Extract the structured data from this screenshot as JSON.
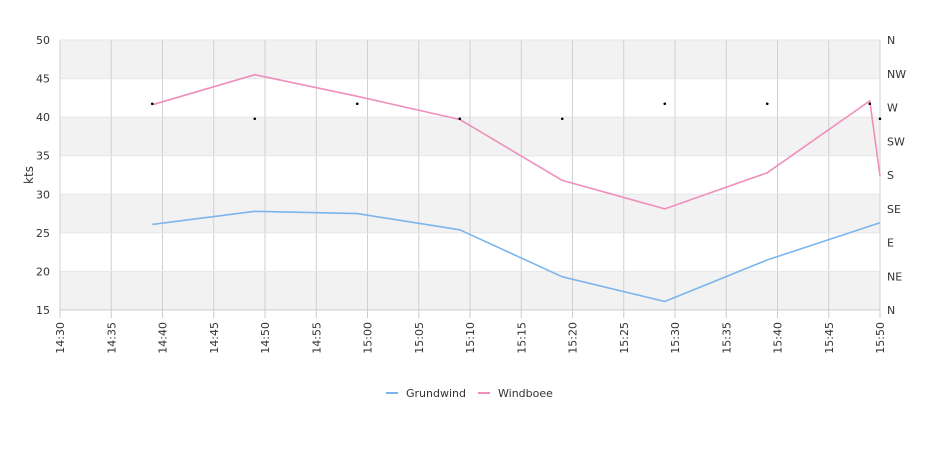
{
  "chart_data": {
    "type": "line",
    "ylabel": "kts",
    "ylim": [
      15,
      50
    ],
    "yticks": [
      15,
      20,
      25,
      30,
      35,
      40,
      45,
      50
    ],
    "xlim": [
      "14:30",
      "15:50"
    ],
    "xticks": [
      "14:30",
      "14:35",
      "14:40",
      "14:45",
      "14:50",
      "14:55",
      "15:00",
      "15:05",
      "15:10",
      "15:15",
      "15:20",
      "15:25",
      "15:30",
      "15:35",
      "15:40",
      "15:45",
      "15:50"
    ],
    "direction_ticks": [
      "N",
      "NE",
      "E",
      "SE",
      "S",
      "SW",
      "W",
      "NW",
      "N"
    ],
    "alternating_bands": true,
    "vertical_grid": true,
    "legend_position": "bottom-center",
    "series": [
      {
        "name": "Grundwind",
        "color": "#7cb5ec",
        "points": [
          [
            "14:39",
            26.1
          ],
          [
            "14:49",
            27.8
          ],
          [
            "14:59",
            27.5
          ],
          [
            "15:09",
            25.4
          ],
          [
            "15:19",
            19.3
          ],
          [
            "15:29",
            16.1
          ],
          [
            "15:39",
            21.5
          ],
          [
            "15:50",
            26.3
          ]
        ]
      },
      {
        "name": "Windboee",
        "color": "#f08fbd",
        "points": [
          [
            "14:39",
            41.6
          ],
          [
            "14:49",
            45.5
          ],
          [
            "14:59",
            42.7
          ],
          [
            "15:09",
            39.7
          ],
          [
            "15:19",
            31.8
          ],
          [
            "15:29",
            28.1
          ],
          [
            "15:39",
            32.8
          ],
          [
            "15:49",
            42.1
          ],
          [
            "15:50",
            32.4
          ]
        ]
      }
    ],
    "direction_points": [
      [
        "14:39",
        275
      ],
      [
        "14:49",
        255
      ],
      [
        "14:59",
        275
      ],
      [
        "15:09",
        255
      ],
      [
        "15:19",
        255
      ],
      [
        "15:29",
        275
      ],
      [
        "15:39",
        275
      ],
      [
        "15:49",
        275
      ],
      [
        "15:50",
        255
      ]
    ]
  }
}
